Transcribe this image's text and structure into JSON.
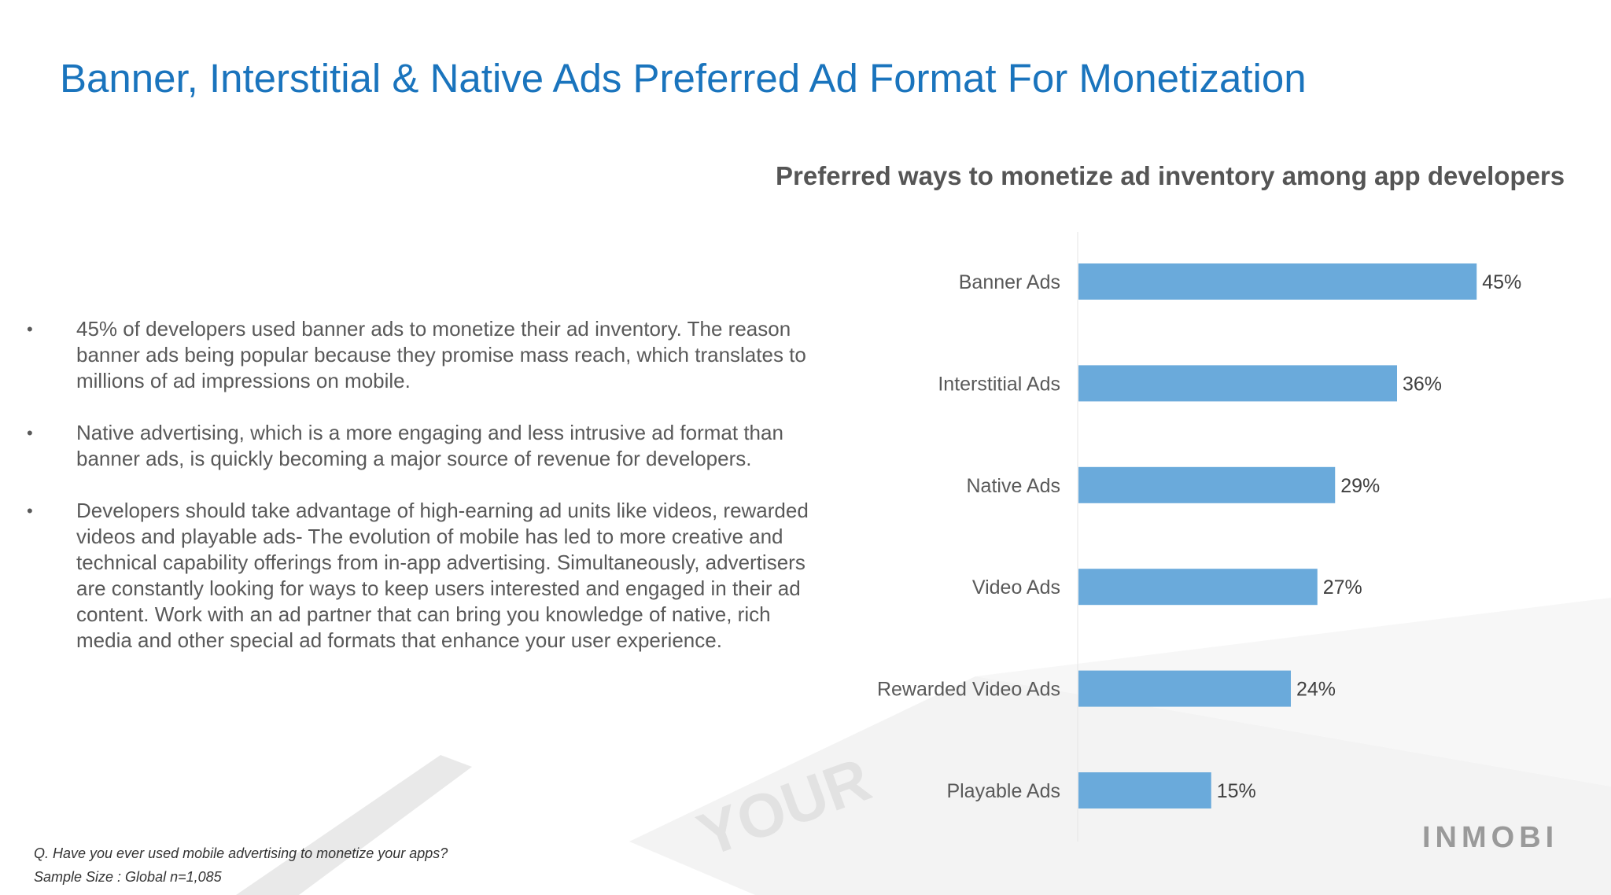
{
  "slide": {
    "title": "Banner, Interstitial & Native Ads Preferred Ad Format For Monetization",
    "bullets": [
      "45% of developers used banner ads to monetize their ad inventory. The reason banner ads being popular because they promise mass reach, which translates to millions of ad impressions on mobile.",
      "Native advertising, which is a more engaging and less intrusive ad format than banner ads, is quickly becoming a major source of revenue for developers.",
      "Developers should take advantage of high-earning ad units like videos, rewarded videos and playable ads-  The evolution of mobile has led to more creative and technical capability offerings from in-app advertising. Simultaneously, advertisers are constantly looking for ways to keep users interested and engaged in their ad content. Work with an ad partner that can bring you knowledge of native, rich media and other special ad formats that enhance your user experience."
    ],
    "bullet_symbol": "•",
    "footnote_question": "Q. Have you ever used mobile advertising to monetize your apps?",
    "footnote_sample": "Sample Size :  Global n=1,085",
    "logo_text": "INMOBI",
    "background_watermark": "YOUR"
  },
  "colors": {
    "title": "#1a74bd",
    "bar": "#6aaadb",
    "text": "#595959"
  },
  "chart_data": {
    "type": "bar",
    "orientation": "horizontal",
    "title": "Preferred ways to monetize ad inventory among app developers",
    "categories": [
      "Banner Ads",
      "Interstitial Ads",
      "Native Ads",
      "Video Ads",
      "Rewarded Video Ads",
      "Playable Ads"
    ],
    "values": [
      45,
      36,
      29,
      27,
      24,
      15
    ],
    "value_suffix": "%",
    "xlim": [
      0,
      55
    ],
    "grid": false,
    "legend": "none"
  }
}
